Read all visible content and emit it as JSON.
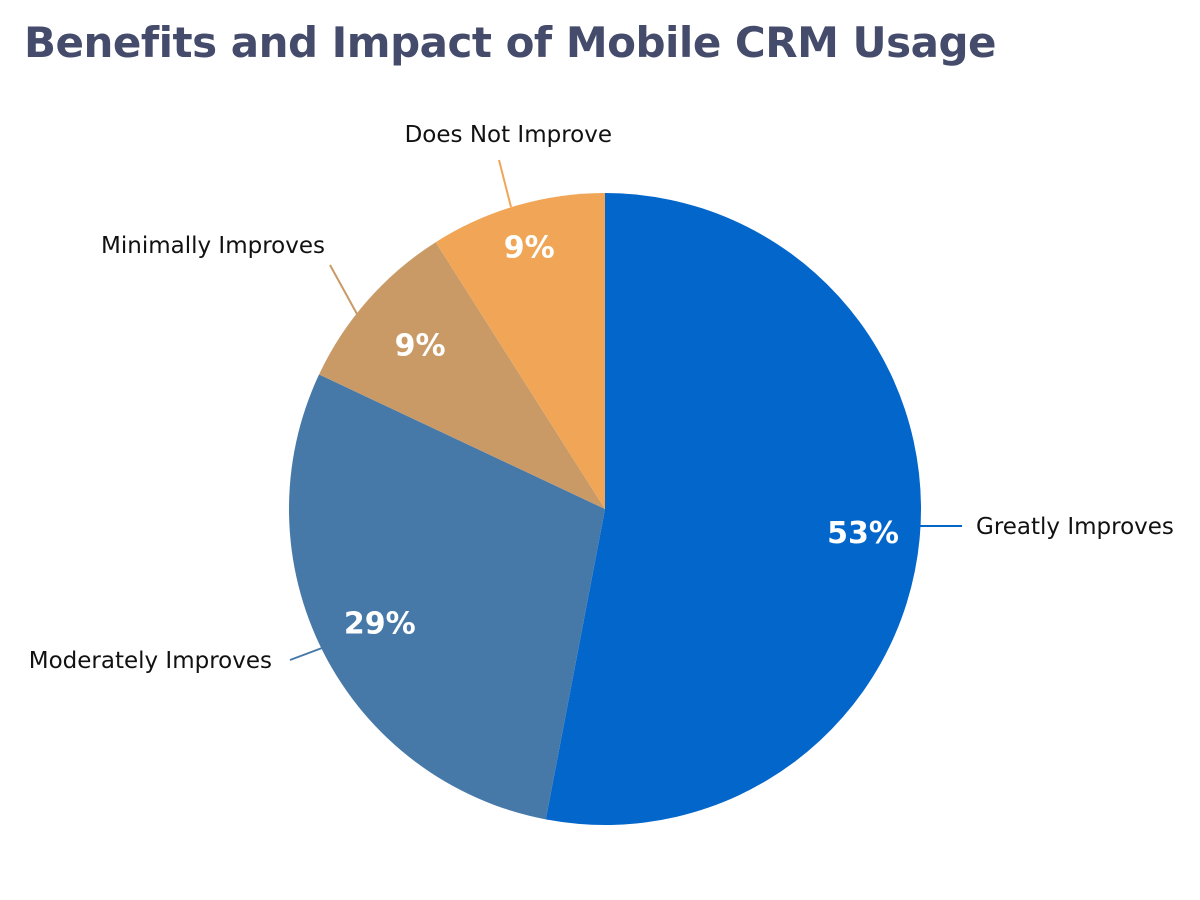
{
  "chart_data": {
    "type": "pie",
    "title": "Benefits and Impact of Mobile CRM Usage",
    "categories": [
      "Greatly Improves",
      "Moderately Improves",
      "Minimally Improves",
      "Does Not Improve"
    ],
    "values": [
      53,
      29,
      9,
      9
    ],
    "value_labels": [
      "53%",
      "29%",
      "9%",
      "9%"
    ],
    "colors": [
      "#0366cb",
      "#4779a8",
      "#c99a66",
      "#f0a656"
    ],
    "start_angle": "12 o'clock",
    "direction": "clockwise",
    "legend": "none (leader-line labels)"
  }
}
